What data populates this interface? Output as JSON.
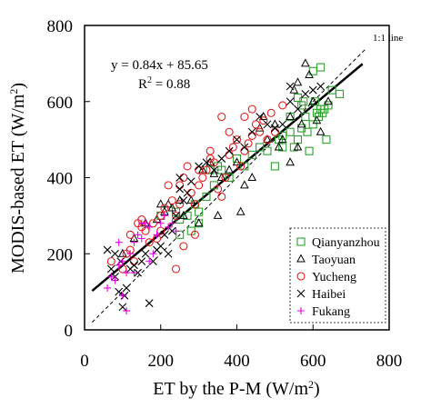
{
  "chart_data": {
    "type": "scatter",
    "title": "",
    "xlabel": "ET by the P-M (W/m",
    "xlabel_sup": "2",
    "xlabel_end": ")",
    "ylabel": "MODIS-based ET (W/m",
    "ylabel_sup": "2",
    "ylabel_end": ")",
    "xlim": [
      0,
      800
    ],
    "ylim": [
      0,
      800
    ],
    "xticks": [
      0,
      200,
      400,
      600,
      800
    ],
    "yticks": [
      0,
      200,
      400,
      600,
      800
    ],
    "grid": false,
    "legend_position": "bottom-right",
    "equation": "y = 0.84x + 85.65",
    "r2_label": "R",
    "r2_sup": "2",
    "r2_value": " = 0.88",
    "one_to_one_label": "1:1 line",
    "fit_line": {
      "slope": 0.84,
      "intercept": 85.65,
      "x_range": [
        20,
        730
      ]
    },
    "one_to_one_line": {
      "x_range": [
        20,
        740
      ]
    },
    "series": [
      {
        "name": "Qianyanzhou",
        "marker": "square",
        "color": "#2ca02c",
        "points": [
          [
            200,
            300
          ],
          [
            240,
            310
          ],
          [
            250,
            290
          ],
          [
            270,
            300
          ],
          [
            290,
            330
          ],
          [
            300,
            310
          ],
          [
            320,
            350
          ],
          [
            340,
            380
          ],
          [
            360,
            420
          ],
          [
            380,
            400
          ],
          [
            400,
            450
          ],
          [
            420,
            430
          ],
          [
            440,
            460
          ],
          [
            460,
            480
          ],
          [
            480,
            470
          ],
          [
            500,
            430
          ],
          [
            510,
            500
          ],
          [
            520,
            510
          ],
          [
            540,
            520
          ],
          [
            550,
            480
          ],
          [
            560,
            500
          ],
          [
            570,
            530
          ],
          [
            575,
            600
          ],
          [
            580,
            560
          ],
          [
            585,
            520
          ],
          [
            590,
            470
          ],
          [
            600,
            540
          ],
          [
            605,
            600
          ],
          [
            610,
            570
          ],
          [
            615,
            560
          ],
          [
            620,
            580
          ],
          [
            625,
            570
          ],
          [
            630,
            580
          ],
          [
            635,
            500
          ],
          [
            640,
            590
          ],
          [
            600,
            680
          ],
          [
            620,
            690
          ],
          [
            650,
            630
          ],
          [
            670,
            620
          ],
          [
            560,
            610
          ],
          [
            570,
            590
          ],
          [
            330,
            420
          ],
          [
            350,
            430
          ],
          [
            300,
            280
          ],
          [
            280,
            260
          ],
          [
            250,
            250
          ],
          [
            540,
            560
          ],
          [
            520,
            480
          ]
        ]
      },
      {
        "name": "Taoyuan",
        "marker": "triangle",
        "color": "#000000",
        "points": [
          [
            100,
            200
          ],
          [
            130,
            240
          ],
          [
            160,
            280
          ],
          [
            190,
            290
          ],
          [
            200,
            330
          ],
          [
            210,
            310
          ],
          [
            230,
            320
          ],
          [
            260,
            300
          ],
          [
            280,
            340
          ],
          [
            300,
            280
          ],
          [
            310,
            420
          ],
          [
            330,
            440
          ],
          [
            340,
            410
          ],
          [
            360,
            400
          ],
          [
            380,
            420
          ],
          [
            400,
            440
          ],
          [
            410,
            310
          ],
          [
            420,
            380
          ],
          [
            440,
            400
          ],
          [
            460,
            530
          ],
          [
            480,
            500
          ],
          [
            500,
            540
          ],
          [
            510,
            480
          ],
          [
            520,
            500
          ],
          [
            540,
            560
          ],
          [
            550,
            630
          ],
          [
            560,
            650
          ],
          [
            570,
            540
          ],
          [
            580,
            700
          ],
          [
            590,
            670
          ],
          [
            600,
            600
          ],
          [
            610,
            550
          ],
          [
            560,
            480
          ],
          [
            540,
            440
          ],
          [
            620,
            520
          ],
          [
            640,
            600
          ],
          [
            470,
            560
          ],
          [
            350,
            300
          ],
          [
            250,
            340
          ],
          [
            220,
            330
          ]
        ]
      },
      {
        "name": "Yucheng",
        "marker": "circle",
        "color": "#e31a1c",
        "points": [
          [
            70,
            180
          ],
          [
            100,
            160
          ],
          [
            110,
            200
          ],
          [
            120,
            250
          ],
          [
            130,
            180
          ],
          [
            140,
            280
          ],
          [
            150,
            290
          ],
          [
            160,
            260
          ],
          [
            170,
            230
          ],
          [
            180,
            280
          ],
          [
            190,
            240
          ],
          [
            200,
            260
          ],
          [
            210,
            320
          ],
          [
            220,
            380
          ],
          [
            230,
            340
          ],
          [
            240,
            300
          ],
          [
            250,
            380
          ],
          [
            260,
            400
          ],
          [
            270,
            430
          ],
          [
            280,
            360
          ],
          [
            290,
            330
          ],
          [
            300,
            380
          ],
          [
            310,
            400
          ],
          [
            320,
            420
          ],
          [
            330,
            450
          ],
          [
            340,
            440
          ],
          [
            350,
            370
          ],
          [
            360,
            350
          ],
          [
            370,
            400
          ],
          [
            380,
            460
          ],
          [
            390,
            480
          ],
          [
            400,
            500
          ],
          [
            410,
            430
          ],
          [
            420,
            470
          ],
          [
            430,
            490
          ],
          [
            440,
            510
          ],
          [
            450,
            540
          ],
          [
            460,
            520
          ],
          [
            470,
            550
          ],
          [
            480,
            500
          ],
          [
            490,
            570
          ],
          [
            500,
            520
          ],
          [
            520,
            590
          ],
          [
            440,
            580
          ],
          [
            420,
            560
          ],
          [
            380,
            520
          ],
          [
            360,
            560
          ],
          [
            330,
            470
          ],
          [
            300,
            420
          ],
          [
            250,
            330
          ],
          [
            200,
            300
          ],
          [
            150,
            270
          ],
          [
            120,
            210
          ],
          [
            240,
            160
          ],
          [
            260,
            220
          ],
          [
            290,
            250
          ]
        ]
      },
      {
        "name": "Haibei",
        "marker": "x",
        "color": "#000000",
        "points": [
          [
            60,
            210
          ],
          [
            70,
            160
          ],
          [
            80,
            200
          ],
          [
            90,
            100
          ],
          [
            100,
            60
          ],
          [
            105,
            90
          ],
          [
            110,
            110
          ],
          [
            120,
            160
          ],
          [
            130,
            170
          ],
          [
            140,
            150
          ],
          [
            150,
            180
          ],
          [
            160,
            200
          ],
          [
            170,
            70
          ],
          [
            180,
            180
          ],
          [
            190,
            210
          ],
          [
            200,
            220
          ],
          [
            210,
            250
          ],
          [
            220,
            200
          ],
          [
            230,
            260
          ],
          [
            240,
            300
          ],
          [
            250,
            370
          ],
          [
            260,
            340
          ],
          [
            270,
            360
          ],
          [
            280,
            390
          ],
          [
            300,
            430
          ],
          [
            320,
            440
          ],
          [
            340,
            420
          ],
          [
            360,
            450
          ],
          [
            380,
            470
          ],
          [
            400,
            500
          ],
          [
            420,
            480
          ],
          [
            440,
            520
          ],
          [
            460,
            560
          ],
          [
            480,
            540
          ],
          [
            500,
            530
          ],
          [
            520,
            540
          ],
          [
            540,
            600
          ],
          [
            560,
            580
          ],
          [
            580,
            620
          ],
          [
            600,
            630
          ],
          [
            620,
            640
          ],
          [
            540,
            640
          ],
          [
            80,
            140
          ],
          [
            95,
            180
          ],
          [
            250,
            400
          ]
        ]
      },
      {
        "name": "Fukang",
        "marker": "plus",
        "color": "#e600e6",
        "points": [
          [
            60,
            110
          ],
          [
            70,
            140
          ],
          [
            80,
            130
          ],
          [
            90,
            170
          ],
          [
            100,
            180
          ],
          [
            110,
            150
          ],
          [
            120,
            200
          ],
          [
            130,
            230
          ],
          [
            140,
            250
          ],
          [
            150,
            240
          ],
          [
            160,
            280
          ],
          [
            170,
            270
          ],
          [
            180,
            200
          ],
          [
            190,
            250
          ],
          [
            200,
            280
          ],
          [
            210,
            300
          ],
          [
            220,
            270
          ],
          [
            230,
            280
          ],
          [
            240,
            260
          ],
          [
            100,
            90
          ],
          [
            110,
            50
          ],
          [
            130,
            150
          ],
          [
            150,
            280
          ],
          [
            90,
            230
          ],
          [
            170,
            180
          ]
        ]
      }
    ]
  }
}
